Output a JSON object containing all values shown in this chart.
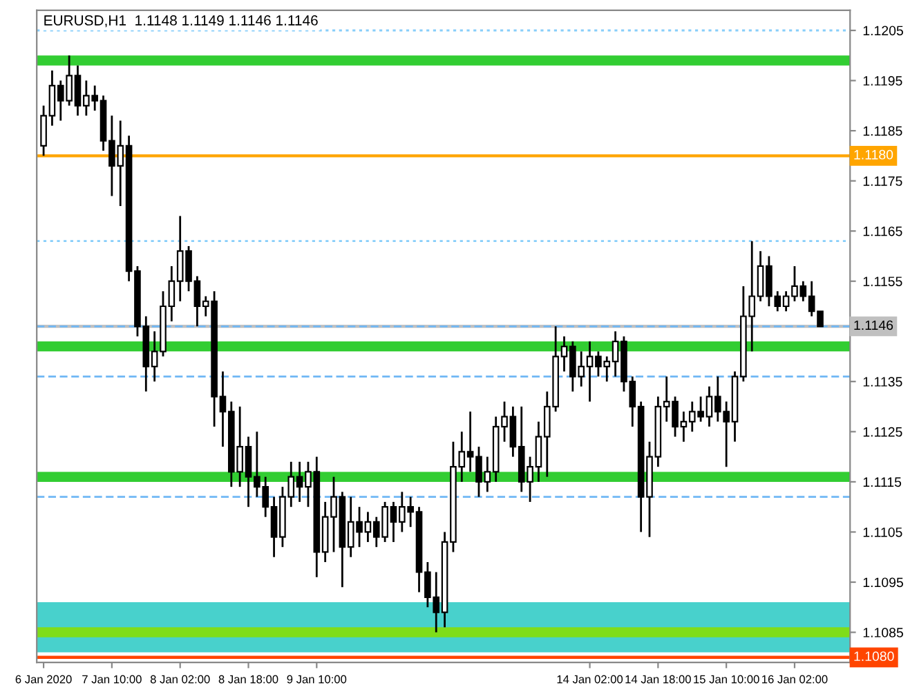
{
  "chart_data": {
    "type": "candlestick",
    "title": "EURUSD,H1  1.1148 1.1149 1.1146 1.1146",
    "categories": [
      "6 Jan 2020",
      null,
      null,
      null,
      null,
      null,
      null,
      null,
      "7 Jan 10:00",
      null,
      null,
      null,
      null,
      null,
      null,
      null,
      "8 Jan 02:00",
      null,
      null,
      null,
      null,
      null,
      null,
      null,
      "8 Jan 18:00",
      null,
      null,
      null,
      null,
      null,
      null,
      null,
      "9 Jan 10:00",
      null,
      null,
      null,
      null,
      null,
      null,
      null,
      null,
      null,
      null,
      null,
      null,
      null,
      null,
      null,
      null,
      null,
      null,
      null,
      null,
      null,
      null,
      null,
      null,
      null,
      null,
      null,
      null,
      null,
      null,
      null,
      "14 Jan 02:00",
      null,
      null,
      null,
      null,
      null,
      null,
      null,
      "14 Jan 18:00",
      null,
      null,
      null,
      null,
      null,
      null,
      null,
      "15 Jan 10:00",
      null,
      null,
      null,
      null,
      null,
      null,
      null,
      "16 Jan 02:00",
      null,
      null,
      null
    ],
    "ohlc": [
      [
        1.1182,
        1.119,
        1.118,
        1.1188
      ],
      [
        1.1188,
        1.1197,
        1.1186,
        1.1194
      ],
      [
        1.1194,
        1.1195,
        1.1187,
        1.1191
      ],
      [
        1.1191,
        1.12,
        1.119,
        1.1196
      ],
      [
        1.1196,
        1.1198,
        1.1188,
        1.119
      ],
      [
        1.119,
        1.1195,
        1.1188,
        1.1192
      ],
      [
        1.1192,
        1.1194,
        1.1189,
        1.1191
      ],
      [
        1.1191,
        1.1192,
        1.1181,
        1.1183
      ],
      [
        1.1183,
        1.1188,
        1.1172,
        1.1178
      ],
      [
        1.1178,
        1.1187,
        1.117,
        1.1182
      ],
      [
        1.1182,
        1.1184,
        1.1155,
        1.1157
      ],
      [
        1.1157,
        1.1158,
        1.1144,
        1.1146
      ],
      [
        1.1146,
        1.1148,
        1.1133,
        1.1138
      ],
      [
        1.1138,
        1.1145,
        1.1135,
        1.1141
      ],
      [
        1.1141,
        1.1153,
        1.114,
        1.115
      ],
      [
        1.115,
        1.1158,
        1.1147,
        1.1155
      ],
      [
        1.1155,
        1.1168,
        1.1151,
        1.1161
      ],
      [
        1.1161,
        1.1162,
        1.1153,
        1.1155
      ],
      [
        1.1155,
        1.1156,
        1.1146,
        1.115
      ],
      [
        1.115,
        1.1152,
        1.1148,
        1.1151
      ],
      [
        1.1151,
        1.1153,
        1.1126,
        1.1132
      ],
      [
        1.1132,
        1.1137,
        1.1122,
        1.1129
      ],
      [
        1.1129,
        1.1131,
        1.1114,
        1.1117
      ],
      [
        1.1117,
        1.113,
        1.1114,
        1.1122
      ],
      [
        1.1122,
        1.1124,
        1.111,
        1.1116
      ],
      [
        1.1116,
        1.1125,
        1.1112,
        1.1114
      ],
      [
        1.1114,
        1.1116,
        1.1108,
        1.111
      ],
      [
        1.111,
        1.1112,
        1.11,
        1.1104
      ],
      [
        1.1104,
        1.1114,
        1.1102,
        1.1112
      ],
      [
        1.1112,
        1.1119,
        1.111,
        1.1116
      ],
      [
        1.1116,
        1.1119,
        1.1111,
        1.1114
      ],
      [
        1.1114,
        1.1119,
        1.111,
        1.1117
      ],
      [
        1.1117,
        1.112,
        1.1096,
        1.1101
      ],
      [
        1.1101,
        1.1111,
        1.1099,
        1.1108
      ],
      [
        1.1108,
        1.1116,
        1.1101,
        1.1112
      ],
      [
        1.1112,
        1.1113,
        1.1094,
        1.1102
      ],
      [
        1.1102,
        1.1112,
        1.11,
        1.1107
      ],
      [
        1.1107,
        1.111,
        1.1102,
        1.1105
      ],
      [
        1.1105,
        1.1109,
        1.1103,
        1.1107
      ],
      [
        1.1107,
        1.1108,
        1.1102,
        1.1104
      ],
      [
        1.1104,
        1.1111,
        1.1103,
        1.111
      ],
      [
        1.111,
        1.1111,
        1.1103,
        1.1107
      ],
      [
        1.1107,
        1.1113,
        1.1105,
        1.111
      ],
      [
        1.111,
        1.1112,
        1.1106,
        1.1109
      ],
      [
        1.1109,
        1.111,
        1.1093,
        1.1097
      ],
      [
        1.1097,
        1.1099,
        1.109,
        1.1092
      ],
      [
        1.1092,
        1.1097,
        1.1085,
        1.1089
      ],
      [
        1.1089,
        1.1105,
        1.1086,
        1.1103
      ],
      [
        1.1103,
        1.1123,
        1.1101,
        1.1118
      ],
      [
        1.1118,
        1.1125,
        1.1115,
        1.1121
      ],
      [
        1.1121,
        1.1129,
        1.1117,
        1.112
      ],
      [
        1.112,
        1.1122,
        1.1112,
        1.1115
      ],
      [
        1.1115,
        1.112,
        1.1113,
        1.1117
      ],
      [
        1.1117,
        1.1128,
        1.1115,
        1.1126
      ],
      [
        1.1126,
        1.1131,
        1.1123,
        1.1128
      ],
      [
        1.1128,
        1.113,
        1.112,
        1.1122
      ],
      [
        1.1122,
        1.113,
        1.1113,
        1.1115
      ],
      [
        1.1115,
        1.112,
        1.1111,
        1.1118
      ],
      [
        1.1118,
        1.1127,
        1.1115,
        1.1124
      ],
      [
        1.1124,
        1.1133,
        1.1116,
        1.113
      ],
      [
        1.113,
        1.1146,
        1.1129,
        1.114
      ],
      [
        1.114,
        1.1144,
        1.1137,
        1.1142
      ],
      [
        1.1142,
        1.1143,
        1.1133,
        1.1136
      ],
      [
        1.1136,
        1.1141,
        1.1134,
        1.1138
      ],
      [
        1.1138,
        1.1143,
        1.1131,
        1.114
      ],
      [
        1.114,
        1.1141,
        1.1136,
        1.1138
      ],
      [
        1.1138,
        1.114,
        1.1135,
        1.1139
      ],
      [
        1.1139,
        1.1145,
        1.1136,
        1.1143
      ],
      [
        1.1143,
        1.1144,
        1.1133,
        1.1135
      ],
      [
        1.1135,
        1.1136,
        1.1126,
        1.113
      ],
      [
        1.113,
        1.1131,
        1.1105,
        1.1112
      ],
      [
        1.1112,
        1.1123,
        1.1104,
        1.112
      ],
      [
        1.112,
        1.1132,
        1.1118,
        1.113
      ],
      [
        1.113,
        1.1136,
        1.1127,
        1.1131
      ],
      [
        1.1131,
        1.1132,
        1.1124,
        1.1126
      ],
      [
        1.1126,
        1.1129,
        1.1123,
        1.1127
      ],
      [
        1.1127,
        1.1131,
        1.1125,
        1.1129
      ],
      [
        1.1129,
        1.1132,
        1.1127,
        1.1128
      ],
      [
        1.1128,
        1.1134,
        1.1126,
        1.1132
      ],
      [
        1.1132,
        1.1136,
        1.1127,
        1.1129
      ],
      [
        1.1129,
        1.1131,
        1.1118,
        1.1127
      ],
      [
        1.1127,
        1.1137,
        1.1123,
        1.1136
      ],
      [
        1.1136,
        1.1154,
        1.1135,
        1.1148
      ],
      [
        1.1148,
        1.1163,
        1.1141,
        1.1152
      ],
      [
        1.1152,
        1.1161,
        1.1151,
        1.1158
      ],
      [
        1.1158,
        1.116,
        1.115,
        1.1152
      ],
      [
        1.1152,
        1.1153,
        1.1149,
        1.115
      ],
      [
        1.115,
        1.1153,
        1.1149,
        1.1152
      ],
      [
        1.1152,
        1.1158,
        1.1151,
        1.1154
      ],
      [
        1.1154,
        1.1155,
        1.1151,
        1.1152
      ],
      [
        1.1152,
        1.1155,
        1.1148,
        1.1149
      ],
      [
        1.1149,
        1.1149,
        1.1146,
        1.1146
      ]
    ],
    "ylim": [
      1.1079,
      1.1209
    ],
    "yticks": [
      1.1205,
      1.1195,
      1.1185,
      1.1175,
      1.1165,
      1.1155,
      1.1135,
      1.1125,
      1.1115,
      1.1105,
      1.1095,
      1.1085
    ],
    "bands": [
      {
        "axis": "y",
        "from": 1.1081,
        "to": 1.1091,
        "color": "#48d1cc"
      },
      {
        "axis": "y",
        "from": 1.1084,
        "to": 1.1086,
        "color": "#7fdd1a"
      },
      {
        "axis": "y",
        "from": 1.1198,
        "to": 1.12,
        "color": "#32cd32"
      },
      {
        "axis": "y",
        "from": 1.1141,
        "to": 1.1143,
        "color": "#32cd32"
      },
      {
        "axis": "y",
        "from": 1.1115,
        "to": 1.1117,
        "color": "#32cd32"
      }
    ],
    "ref_lines": [
      {
        "axis": "y",
        "value": 1.118,
        "label": "1.1180",
        "color": "#ffa500",
        "line_style": "solid"
      },
      {
        "axis": "y",
        "value": 1.108,
        "label": "1.1080",
        "color": "#ff4500",
        "line_style": "solid"
      },
      {
        "axis": "y",
        "value": 1.1146,
        "label": "1.1146",
        "color": "#c0c0c0",
        "line_style": "solid"
      },
      {
        "axis": "y",
        "value": 1.1205,
        "color": "#87cefa",
        "line_style": "dotted"
      },
      {
        "axis": "y",
        "value": 1.1163,
        "color": "#87cefa",
        "line_style": "dotted"
      },
      {
        "axis": "y",
        "value": 1.1146,
        "color": "#6fb7f5",
        "line_style": "dashed"
      },
      {
        "axis": "y",
        "value": 1.1136,
        "color": "#6fb7f5",
        "line_style": "dashed"
      },
      {
        "axis": "y",
        "value": 1.1112,
        "color": "#6fb7f5",
        "line_style": "dashed"
      }
    ],
    "grid": false,
    "legend": false
  }
}
